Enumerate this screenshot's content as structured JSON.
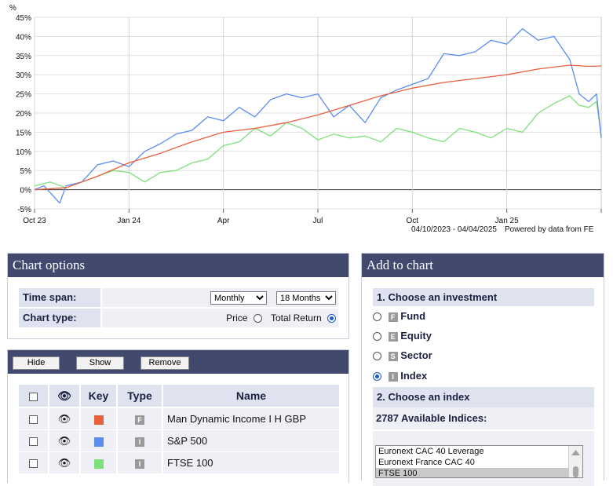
{
  "chart": {
    "y_unit": "%",
    "footer_range": "04/10/2023 - 04/04/2025",
    "footer_powered": "Powered by data from FE"
  },
  "chart_data": {
    "type": "line",
    "y_unit": "%",
    "ylim": [
      -5,
      45
    ],
    "y_ticks": [
      45,
      40,
      35,
      30,
      25,
      20,
      15,
      10,
      5,
      0,
      -5
    ],
    "y_tick_labels": [
      "45%",
      "40%",
      "35%",
      "30%",
      "25%",
      "20%",
      "15%",
      "10%",
      "5%",
      "0%",
      "-5%"
    ],
    "x_tick_labels": [
      "Oct 23",
      "Jan 24",
      "Apr",
      "Jul",
      "Oct",
      "Jan 25"
    ],
    "x_tick_months": [
      0,
      3,
      6,
      9,
      12,
      15
    ],
    "x_range_months": [
      0,
      18
    ],
    "grid": true,
    "series": [
      {
        "name": "Man Dynamic Income I H GBP",
        "color": "#e8603c",
        "x": [
          0,
          1,
          2,
          3,
          4,
          5,
          6,
          7,
          8,
          9,
          10,
          11,
          12,
          13,
          14,
          15,
          16,
          17,
          17.6,
          18
        ],
        "y": [
          0,
          0.5,
          3.5,
          7,
          9.5,
          12.5,
          15,
          16,
          17.5,
          19.5,
          22,
          24.5,
          26.5,
          28,
          29,
          30,
          31.5,
          32.5,
          32.2,
          32.3
        ]
      },
      {
        "name": "S&P 500",
        "color": "#5b8def",
        "x": [
          0,
          0.3,
          0.8,
          1,
          1.5,
          2,
          2.5,
          3,
          3.5,
          4,
          4.5,
          5,
          5.5,
          6,
          6.5,
          7,
          7.5,
          8,
          8.5,
          9,
          9.5,
          10,
          10.5,
          11,
          11.5,
          12,
          12.5,
          13,
          13.5,
          14,
          14.5,
          15,
          15.5,
          16,
          16.5,
          17,
          17.3,
          17.6,
          17.85,
          18
        ],
        "y": [
          0,
          1,
          -3.5,
          1,
          2,
          6.5,
          7.5,
          6,
          10,
          12,
          14.5,
          15.5,
          19,
          18,
          21.5,
          19,
          23.5,
          25,
          24,
          25,
          19,
          22,
          17.5,
          24,
          26,
          27.5,
          29,
          35.5,
          35,
          36,
          39,
          38,
          42,
          39,
          40,
          34,
          25,
          23,
          25,
          13.5
        ]
      },
      {
        "name": "FTSE 100",
        "color": "#7ee07a",
        "x": [
          0,
          0.5,
          1,
          1.5,
          2,
          2.5,
          3,
          3.5,
          4,
          4.5,
          5,
          5.5,
          6,
          6.5,
          7,
          7.5,
          8,
          8.5,
          9,
          9.5,
          10,
          10.5,
          11,
          11.5,
          12,
          12.5,
          13,
          13.5,
          14,
          14.5,
          15,
          15.5,
          16,
          16.5,
          17,
          17.3,
          17.6,
          17.85,
          18
        ],
        "y": [
          1,
          2,
          0.5,
          2,
          3.5,
          5,
          4.5,
          2,
          4.5,
          5,
          7,
          8,
          11.5,
          12.5,
          16,
          14,
          17.5,
          16,
          13,
          14.5,
          13.5,
          14,
          12.5,
          16,
          15,
          13.5,
          12.5,
          16,
          15,
          13.5,
          16,
          15,
          20,
          22.5,
          24.5,
          22,
          21.5,
          23,
          14
        ]
      }
    ]
  },
  "chart_options": {
    "title": "Chart options",
    "time_span_label": "Time span:",
    "time_span_interval": "Monthly",
    "time_span_period": "18 Months",
    "chart_type_label": "Chart type:",
    "price_label": "Price",
    "total_return_label": "Total Return",
    "selected_type": "Total Return"
  },
  "series_table": {
    "hide_label": "Hide",
    "show_label": "Show",
    "remove_label": "Remove",
    "headers": {
      "key": "Key",
      "type": "Type",
      "name": "Name"
    },
    "rows": [
      {
        "name": "Man Dynamic Income I H GBP",
        "type_code": "F",
        "color": "#e8603c",
        "eye_icon": "eye-icon"
      },
      {
        "name": "S&P 500",
        "type_code": "I",
        "color": "#5b8def",
        "eye_icon": "eye-icon"
      },
      {
        "name": "FTSE 100",
        "type_code": "I",
        "color": "#7ee07a",
        "eye_icon": "eye-icon"
      }
    ]
  },
  "add_to_chart": {
    "title": "Add to chart",
    "step1_label": "1. Choose an investment",
    "options": [
      {
        "code": "F",
        "label": "Fund",
        "selected": false
      },
      {
        "code": "E",
        "label": "Equity",
        "selected": false
      },
      {
        "code": "S",
        "label": "Sector",
        "selected": false
      },
      {
        "code": "I",
        "label": "Index",
        "selected": true
      }
    ],
    "step2_label": "2. Choose an index",
    "available_label": "2787 Available Indices:",
    "list_items": [
      "Euronext CAC 40 Leverage",
      "Euronext France CAC 40",
      "FTSE 100"
    ],
    "selected_item": "FTSE 100"
  }
}
